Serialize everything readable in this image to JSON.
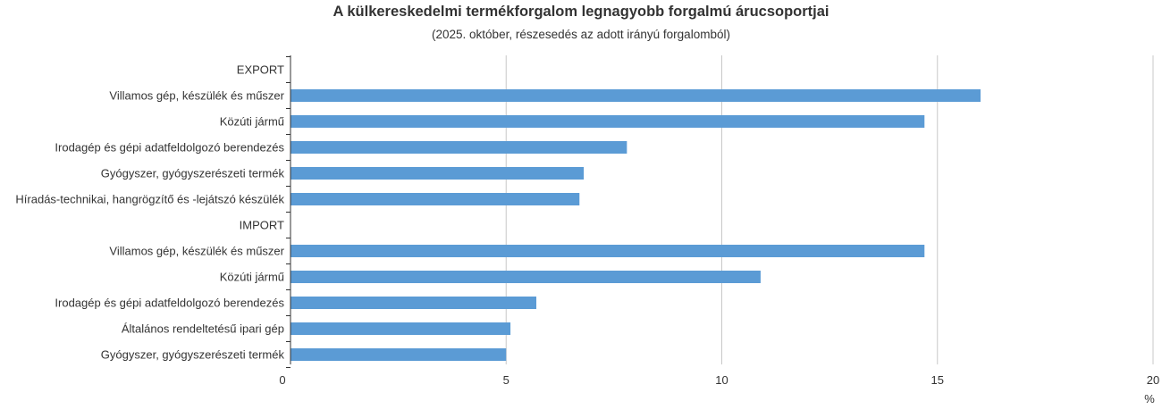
{
  "chart_data": {
    "type": "bar",
    "orientation": "horizontal",
    "title": "A külkereskedelmi termékforgalom legnagyobb forgalmú árucsoportjai",
    "subtitle": "(2025. október, részesedés az adott irányú forgalomból)",
    "unit_label": "%",
    "categories": [
      "EXPORT",
      "Villamos gép, készülék és műszer",
      "Közúti jármű",
      "Irodagép és gépi adatfeldolgozó berendezés",
      "Gyógyszer, gyógyszerészeti termék",
      "Híradás-technikai, hangrögzítő és -lejátszó készülék",
      "IMPORT",
      "Villamos gép, készülék és műszer",
      "Közúti jármű",
      "Irodagép és gépi adatfeldolgozó berendezés",
      "Általános rendeltetésű ipari gép",
      "Gyógyszer, gyógyszerészeti termék"
    ],
    "values": [
      null,
      16.0,
      14.7,
      7.8,
      6.8,
      6.7,
      null,
      14.7,
      10.9,
      5.7,
      5.1,
      5.0
    ],
    "xlim": [
      0,
      20
    ],
    "xticks": [
      "0",
      "5",
      "10",
      "15",
      "20"
    ],
    "grid": true,
    "legend": "none",
    "colors": {
      "bar": "#5b9bd5",
      "grid": "#c8c8c8",
      "axis": "#333333",
      "text": "#333333"
    }
  }
}
